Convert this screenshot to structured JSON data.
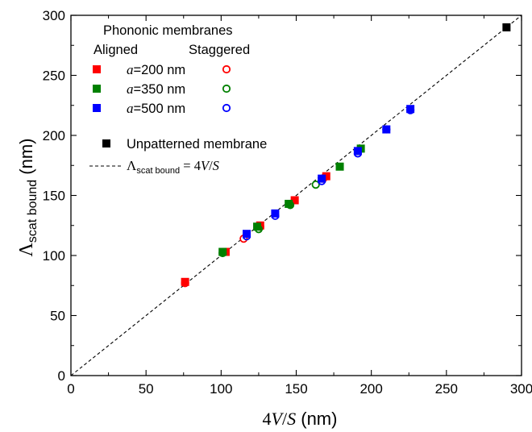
{
  "chart_data": {
    "type": "scatter",
    "xlabel": "4V/S (nm)",
    "ylabel": "Λscat bound (nm)",
    "xlim": [
      0,
      300
    ],
    "ylim": [
      0,
      300
    ],
    "x_ticks": [
      "0",
      "50",
      "100",
      "150",
      "200",
      "250",
      "300"
    ],
    "y_ticks": [
      "0",
      "50",
      "100",
      "150",
      "200",
      "250",
      "300"
    ],
    "grid": false,
    "legend_placement": "top-left",
    "legend": {
      "heading": "Phononic membranes",
      "aligned_label": "Aligned",
      "staggered_label": "Staggered",
      "entries": [
        {
          "param": "a",
          "text": "=200 nm",
          "color": "#ff0000"
        },
        {
          "param": "a",
          "text": "=350 nm",
          "color": "#008000"
        },
        {
          "param": "a",
          "text": "=500 nm",
          "color": "#0000ff"
        }
      ],
      "unpatterned_label": "Unpatterned membrane",
      "bound_line_label": {
        "prefix": "Λ",
        "sub": "scat bound",
        "eq": " = 4",
        "v": "V",
        "slash": "/",
        "s": "S"
      }
    },
    "reference_line": {
      "slope": 1,
      "intercept": 0,
      "style": "dashed",
      "color": "#000000"
    },
    "series": [
      {
        "name": "a=200 nm aligned",
        "marker": "square-filled",
        "color": "#ff0000",
        "points": [
          [
            76,
            78
          ],
          [
            103,
            103
          ],
          [
            126,
            125
          ],
          [
            149,
            146
          ],
          [
            170,
            166
          ]
        ]
      },
      {
        "name": "a=200 nm staggered",
        "marker": "circle-open",
        "color": "#ff0000",
        "points": [
          [
            76,
            77
          ],
          [
            115,
            114
          ],
          [
            126,
            124
          ],
          [
            146,
            143
          ],
          [
            168,
            164
          ]
        ]
      },
      {
        "name": "a=350 nm aligned",
        "marker": "square-filled",
        "color": "#008000",
        "points": [
          [
            101,
            103
          ],
          [
            124,
            124
          ],
          [
            145,
            143
          ],
          [
            179,
            174
          ],
          [
            193,
            189
          ]
        ]
      },
      {
        "name": "a=350 nm staggered",
        "marker": "circle-open",
        "color": "#008000",
        "points": [
          [
            101,
            102
          ],
          [
            125,
            122
          ],
          [
            146,
            142
          ],
          [
            163,
            159
          ],
          [
            191,
            187
          ]
        ]
      },
      {
        "name": "a=500 nm aligned",
        "marker": "square-filled",
        "color": "#0000ff",
        "points": [
          [
            117,
            118
          ],
          [
            136,
            135
          ],
          [
            167,
            164
          ],
          [
            191,
            187
          ],
          [
            210,
            205
          ],
          [
            226,
            222
          ]
        ]
      },
      {
        "name": "a=500 nm staggered",
        "marker": "circle-open",
        "color": "#0000ff",
        "points": [
          [
            117,
            116
          ],
          [
            136,
            133
          ],
          [
            167,
            162
          ],
          [
            191,
            185
          ],
          [
            210,
            205
          ],
          [
            226,
            221
          ]
        ]
      },
      {
        "name": "Unpatterned membrane",
        "marker": "square-filled",
        "color": "#000000",
        "points": [
          [
            290,
            290
          ]
        ]
      }
    ]
  }
}
